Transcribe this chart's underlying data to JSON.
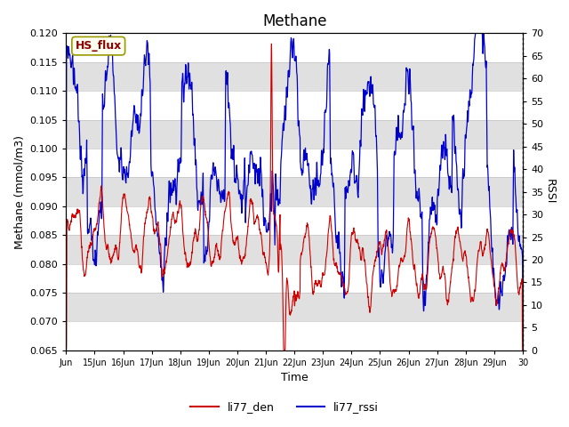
{
  "title": "Methane",
  "xlabel": "Time",
  "ylabel_left": "Methane (mmol/m3)",
  "ylabel_right": "RSSI",
  "ylim_left": [
    0.065,
    0.12
  ],
  "ylim_right": [
    0,
    70
  ],
  "yticks_left": [
    0.065,
    0.07,
    0.075,
    0.08,
    0.085,
    0.09,
    0.095,
    0.1,
    0.105,
    0.11,
    0.115,
    0.12
  ],
  "yticks_right": [
    0,
    5,
    10,
    15,
    20,
    25,
    30,
    35,
    40,
    45,
    50,
    55,
    60,
    65,
    70
  ],
  "color_red": "#CC0000",
  "color_blue": "#0000CC",
  "legend_labels": [
    "li77_den",
    "li77_rssi"
  ],
  "annotation_text": "HS_flux",
  "annotation_color": "#8B0000",
  "annotation_bg": "#FFFFF0",
  "annotation_edge": "#999900",
  "background_color": "#FFFFFF",
  "band_color": "#E0E0E0",
  "title_fontsize": 12,
  "axis_fontsize": 9,
  "tick_fontsize": 8,
  "legend_fontsize": 9
}
